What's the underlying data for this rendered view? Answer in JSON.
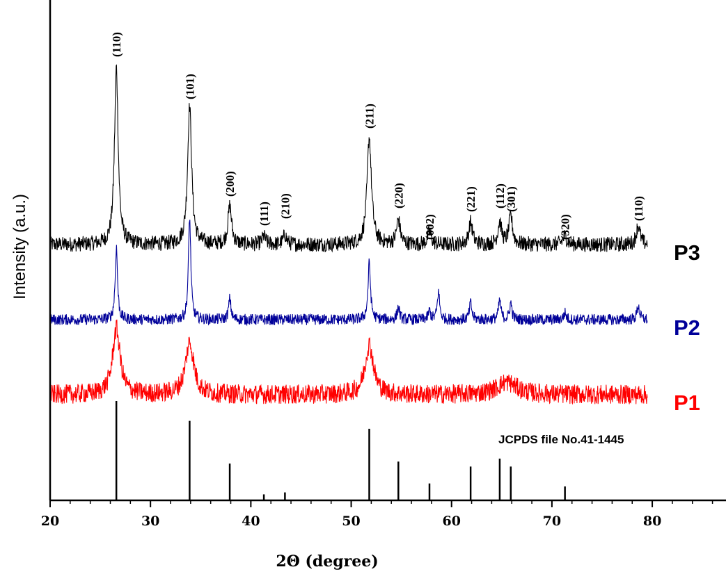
{
  "chart_data": {
    "type": "line",
    "xlabel": "2Θ (degree)",
    "ylabel": "Intensity (a.u.)",
    "xlim": [
      20,
      87
    ],
    "x_ticks": [
      20,
      30,
      40,
      50,
      60,
      70,
      80
    ],
    "x_tick_labels": [
      "20",
      "30",
      "40",
      "50",
      "60",
      "70",
      "80"
    ],
    "x_minor_step": 2,
    "y_ticks_shown": false,
    "grid": false,
    "legend": "none",
    "series": [
      {
        "name": "P3",
        "color": "#000000",
        "x_range": [
          20,
          79.5
        ],
        "noise": 11,
        "peaks": [
          {
            "x": 26.6,
            "h": 255,
            "w": 0.22
          },
          {
            "x": 33.9,
            "h": 200,
            "w": 0.24
          },
          {
            "x": 37.9,
            "h": 55,
            "w": 0.22
          },
          {
            "x": 41.3,
            "h": 12,
            "w": 0.2
          },
          {
            "x": 43.4,
            "h": 14,
            "w": 0.2
          },
          {
            "x": 51.8,
            "h": 155,
            "w": 0.26
          },
          {
            "x": 54.7,
            "h": 35,
            "w": 0.22
          },
          {
            "x": 57.8,
            "h": 18,
            "w": 0.22
          },
          {
            "x": 61.9,
            "h": 32,
            "w": 0.22
          },
          {
            "x": 64.8,
            "h": 32,
            "w": 0.22
          },
          {
            "x": 65.9,
            "h": 40,
            "w": 0.22
          },
          {
            "x": 71.3,
            "h": 12,
            "w": 0.25
          },
          {
            "x": 78.6,
            "h": 28,
            "w": 0.22
          }
        ]
      },
      {
        "name": "P2",
        "color": "#000099",
        "x_range": [
          20,
          79.5
        ],
        "noise": 8,
        "peaks": [
          {
            "x": 26.6,
            "h": 105,
            "w": 0.14
          },
          {
            "x": 33.9,
            "h": 148,
            "w": 0.14
          },
          {
            "x": 37.9,
            "h": 30,
            "w": 0.14
          },
          {
            "x": 51.8,
            "h": 82,
            "w": 0.15
          },
          {
            "x": 54.7,
            "h": 18,
            "w": 0.14
          },
          {
            "x": 57.8,
            "h": 12,
            "w": 0.14
          },
          {
            "x": 58.7,
            "h": 40,
            "w": 0.14
          },
          {
            "x": 61.9,
            "h": 24,
            "w": 0.14
          },
          {
            "x": 64.8,
            "h": 28,
            "w": 0.14
          },
          {
            "x": 65.9,
            "h": 24,
            "w": 0.14
          },
          {
            "x": 71.3,
            "h": 10,
            "w": 0.15
          },
          {
            "x": 78.6,
            "h": 20,
            "w": 0.15
          }
        ]
      },
      {
        "name": "P1",
        "color": "#ff0000",
        "x_range": [
          20,
          79.5
        ],
        "noise": 14,
        "peaks": [
          {
            "x": 26.6,
            "h": 95,
            "w": 0.45
          },
          {
            "x": 33.9,
            "h": 75,
            "w": 0.5
          },
          {
            "x": 51.8,
            "h": 72,
            "w": 0.5
          },
          {
            "x": 65.5,
            "h": 18,
            "w": 1.2
          }
        ]
      }
    ],
    "reference": {
      "label": "JCPDS file No.41-1445",
      "sticks": [
        {
          "x": 26.6,
          "h": 100
        },
        {
          "x": 33.9,
          "h": 80
        },
        {
          "x": 37.9,
          "h": 37
        },
        {
          "x": 41.3,
          "h": 6
        },
        {
          "x": 43.4,
          "h": 8
        },
        {
          "x": 51.8,
          "h": 72
        },
        {
          "x": 54.7,
          "h": 39
        },
        {
          "x": 57.8,
          "h": 17
        },
        {
          "x": 61.9,
          "h": 34
        },
        {
          "x": 64.8,
          "h": 42
        },
        {
          "x": 65.9,
          "h": 34
        },
        {
          "x": 71.3,
          "h": 14
        }
      ]
    },
    "annotations": [
      {
        "text": "(110)",
        "x": 26.6
      },
      {
        "text": "(101)",
        "x": 33.9
      },
      {
        "text": "(200)",
        "x": 37.9
      },
      {
        "text": "(111)",
        "x": 41.3
      },
      {
        "text": "(210)",
        "x": 43.4
      },
      {
        "text": "(211)",
        "x": 51.8
      },
      {
        "text": "(220)",
        "x": 54.7
      },
      {
        "text": "(002)",
        "x": 57.8
      },
      {
        "text": "(221)",
        "x": 61.9
      },
      {
        "text": "(112)",
        "x": 64.8
      },
      {
        "text": "(301)",
        "x": 65.9
      },
      {
        "text": "(320)",
        "x": 71.3
      },
      {
        "text": "(110)",
        "x": 78.6
      }
    ]
  }
}
